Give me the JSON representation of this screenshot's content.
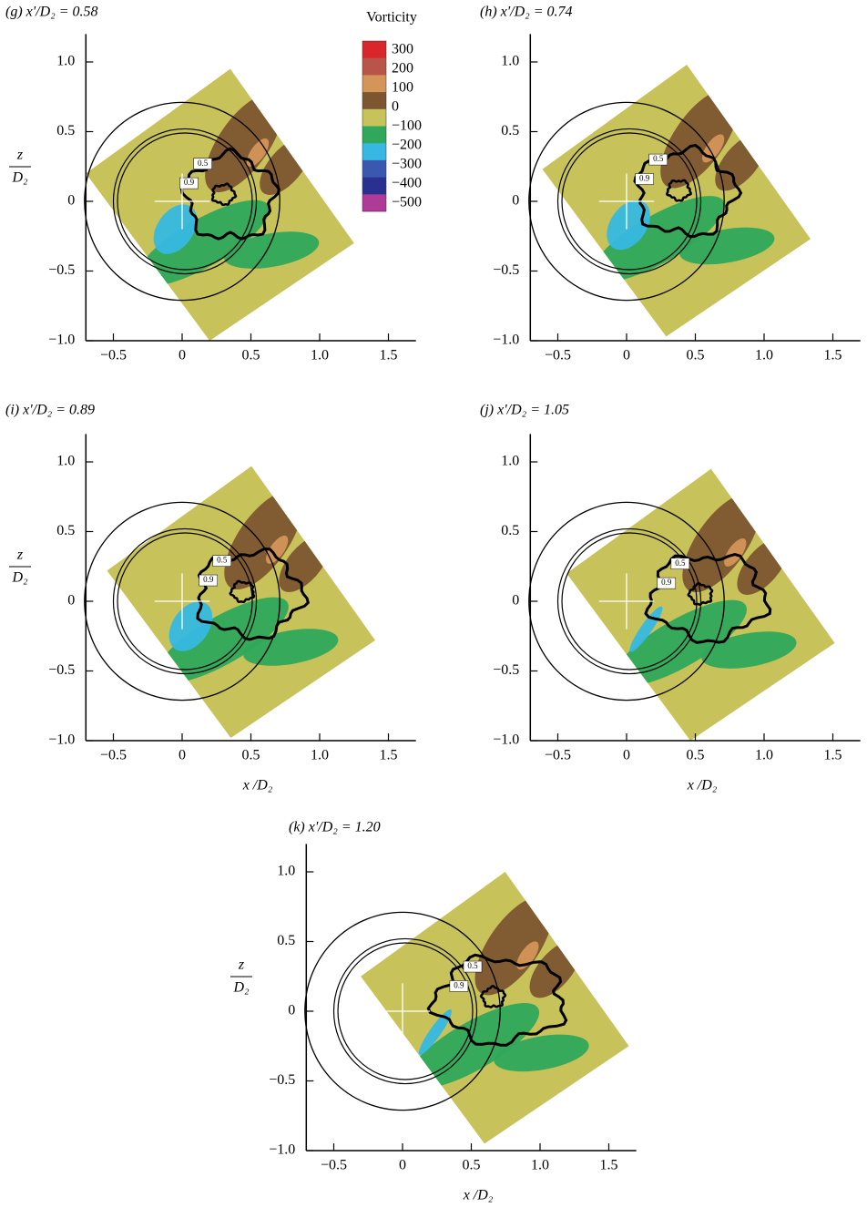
{
  "chart_data": [
    {
      "type": "contour",
      "title": "(g) x'/D₂ = 0.58",
      "xlim": [
        -0.7,
        1.7
      ],
      "xticks": [
        {
          "value": -0.5,
          "label": "−0.5"
        },
        0,
        0.5,
        {
          "value": 1.0,
          "label": "1.0"
        },
        1.5
      ],
      "ylim": [
        -1.0,
        1.2
      ],
      "yticks": [
        {
          "value": -1.0,
          "label": "−1.0"
        },
        {
          "value": -0.5,
          "label": "−0.5"
        },
        0,
        0.5,
        {
          "value": 1.0,
          "label": "1.0"
        }
      ],
      "ylabel_top": "z",
      "ylabel_bottom": "D₂",
      "contour_levels": [
        0.5,
        0.9
      ],
      "legend": {
        "title": "Vorticity",
        "levels": [
          300,
          200,
          100,
          0,
          {
            "value": -100,
            "label": "−100"
          },
          {
            "value": -200,
            "label": "−200"
          },
          {
            "value": -300,
            "label": "−300"
          },
          {
            "value": -400,
            "label": "−400"
          },
          {
            "value": -500,
            "label": "−500"
          }
        ],
        "colors": [
          "#d8262a",
          "#b9544a",
          "#d4955a",
          "#7d5530",
          "#c8c25a",
          "#2fa85c",
          "#36b8e2",
          "#3a58b0",
          "#2a3090",
          "#b03a98"
        ]
      }
    },
    {
      "type": "contour",
      "title": "(h) x'/D₂ = 0.74",
      "xlim": [
        -0.7,
        1.7
      ],
      "xticks": [
        {
          "value": -0.5,
          "label": "−0.5"
        },
        0,
        0.5,
        {
          "value": 1.0,
          "label": "1.0"
        },
        1.5
      ],
      "ylim": [
        -1.0,
        1.2
      ],
      "yticks": [
        {
          "value": -1.0,
          "label": "−1.0"
        },
        {
          "value": -0.5,
          "label": "−0.5"
        },
        0,
        0.5,
        {
          "value": 1.0,
          "label": "1.0"
        }
      ],
      "contour_levels": [
        0.5,
        0.9
      ]
    },
    {
      "type": "contour",
      "title": "(i) x'/D₂ = 0.89",
      "xlim": [
        -0.7,
        1.7
      ],
      "xticks": [
        {
          "value": -0.5,
          "label": "−0.5"
        },
        0,
        0.5,
        {
          "value": 1.0,
          "label": "1.0"
        },
        1.5
      ],
      "ylim": [
        -1.0,
        1.2
      ],
      "yticks": [
        {
          "value": -1.0,
          "label": "−1.0"
        },
        {
          "value": -0.5,
          "label": "−0.5"
        },
        0,
        0.5,
        {
          "value": 1.0,
          "label": "1.0"
        }
      ],
      "xlabel": "x /D₂",
      "ylabel_top": "z",
      "ylabel_bottom": "D₂",
      "contour_levels": [
        0.5,
        0.9
      ]
    },
    {
      "type": "contour",
      "title": "(j) x'/D₂ = 1.05",
      "xlim": [
        -0.7,
        1.7
      ],
      "xticks": [
        {
          "value": -0.5,
          "label": "−0.5"
        },
        0,
        0.5,
        {
          "value": 1.0,
          "label": "1.0"
        },
        1.5
      ],
      "ylim": [
        -1.0,
        1.2
      ],
      "yticks": [
        {
          "value": -1.0,
          "label": "−1.0"
        },
        {
          "value": -0.5,
          "label": "−0.5"
        },
        0,
        0.5,
        {
          "value": 1.0,
          "label": "1.0"
        }
      ],
      "xlabel": "x /D₂",
      "contour_levels": [
        0.5,
        0.9
      ]
    },
    {
      "type": "contour",
      "title": "(k) x'/D₂ = 1.20",
      "xlim": [
        -0.7,
        1.7
      ],
      "xticks": [
        {
          "value": -0.5,
          "label": "−0.5"
        },
        0,
        0.5,
        {
          "value": 1.0,
          "label": "1.0"
        },
        1.5
      ],
      "ylim": [
        -1.0,
        1.2
      ],
      "yticks": [
        {
          "value": -1.0,
          "label": "−1.0"
        },
        {
          "value": -0.5,
          "label": "−0.5"
        },
        0,
        0.5,
        {
          "value": 1.0,
          "label": "1.0"
        }
      ],
      "xlabel": "x /D₂",
      "ylabel_top": "z",
      "ylabel_bottom": "D₂",
      "contour_levels": [
        0.5,
        0.9
      ]
    }
  ]
}
